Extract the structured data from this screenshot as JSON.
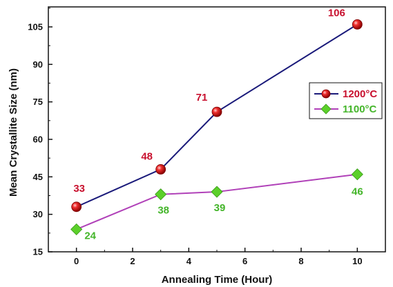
{
  "chart_data": {
    "type": "line",
    "xlabel": "Annealing Time (Hour)",
    "ylabel": "Mean Crystallite Size (nm)",
    "xlim": [
      -1,
      11
    ],
    "ylim": [
      15,
      113
    ],
    "xticks": [
      0,
      2,
      4,
      6,
      8,
      10
    ],
    "yticks": [
      15,
      30,
      45,
      60,
      75,
      90,
      105
    ],
    "grid": false,
    "legend_position": "right",
    "series": [
      {
        "name": "1200°C",
        "x": [
          0,
          3,
          5,
          10
        ],
        "values": [
          33,
          48,
          71,
          106
        ],
        "labels": [
          "33",
          "48",
          "71",
          "106"
        ],
        "line_color": "#1a1a7a",
        "marker_color": "#e01818",
        "label_color": "#c8102e",
        "marker": "sphere"
      },
      {
        "name": "1100°C",
        "x": [
          0,
          3,
          5,
          10
        ],
        "values": [
          24,
          38,
          39,
          46
        ],
        "labels": [
          "24",
          "38",
          "39",
          "46"
        ],
        "line_color": "#b040b8",
        "marker_color": "#5cd02a",
        "label_color": "#44b52a",
        "marker": "diamond"
      }
    ]
  }
}
